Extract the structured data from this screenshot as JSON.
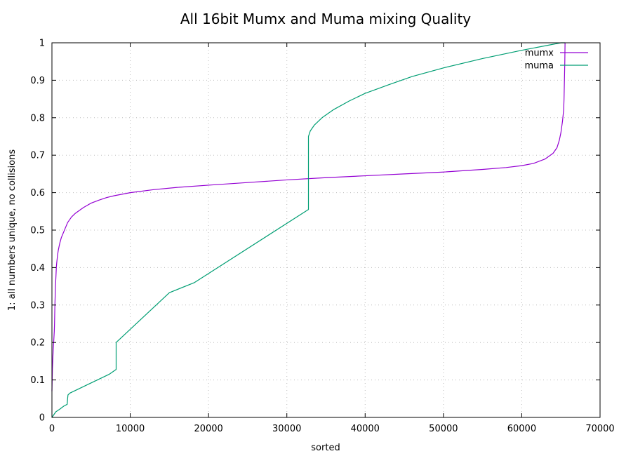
{
  "chart_data": {
    "type": "line",
    "title": "All 16bit Mumx and Muma mixing Quality",
    "xlabel": "sorted",
    "ylabel": "1: all numbers unique, no collisions",
    "xlim": [
      0,
      70000
    ],
    "ylim": [
      0,
      1
    ],
    "x_ticks": [
      0,
      10000,
      20000,
      30000,
      40000,
      50000,
      60000,
      70000
    ],
    "y_ticks": [
      0,
      0.1,
      0.2,
      0.3,
      0.4,
      0.5,
      0.6,
      0.7,
      0.8,
      0.9,
      1
    ],
    "grid": true,
    "legend_position": "top-right",
    "series": [
      {
        "name": "mumx",
        "color": "#9400d3",
        "x": [
          0,
          30,
          60,
          100,
          160,
          220,
          300,
          330,
          380,
          450,
          520,
          560,
          600,
          700,
          800,
          900,
          1000,
          1200,
          1400,
          1700,
          2000,
          2500,
          3000,
          4000,
          5000,
          6000,
          7000,
          8000,
          10000,
          13000,
          16000,
          20000,
          25000,
          30000,
          35000,
          40000,
          45000,
          50000,
          55000,
          58000,
          60000,
          61500,
          63000,
          64000,
          64500,
          64800,
          65000,
          65200,
          65350,
          65400,
          65450,
          65500,
          65530
        ],
        "y": [
          0.07,
          0.1,
          0.13,
          0.15,
          0.18,
          0.2,
          0.23,
          0.25,
          0.3,
          0.35,
          0.38,
          0.4,
          0.41,
          0.43,
          0.445,
          0.455,
          0.465,
          0.48,
          0.49,
          0.505,
          0.52,
          0.535,
          0.545,
          0.56,
          0.572,
          0.58,
          0.587,
          0.592,
          0.6,
          0.608,
          0.614,
          0.62,
          0.627,
          0.634,
          0.64,
          0.645,
          0.65,
          0.655,
          0.662,
          0.667,
          0.672,
          0.678,
          0.69,
          0.705,
          0.72,
          0.74,
          0.76,
          0.79,
          0.82,
          0.85,
          0.9,
          0.95,
          1.0
        ]
      },
      {
        "name": "muma",
        "color": "#009e73",
        "x": [
          0,
          500,
          1000,
          1500,
          1950,
          2000,
          2050,
          2300,
          7300,
          8200,
          8200,
          15000,
          18200,
          32760,
          32760,
          33000,
          33500,
          34500,
          36000,
          38000,
          40000,
          43000,
          46000,
          50000,
          55000,
          60000,
          65000,
          65535
        ],
        "y": [
          0.0,
          0.015,
          0.022,
          0.03,
          0.035,
          0.05,
          0.06,
          0.065,
          0.115,
          0.128,
          0.2,
          0.333,
          0.36,
          0.555,
          0.75,
          0.765,
          0.78,
          0.8,
          0.822,
          0.845,
          0.865,
          0.888,
          0.91,
          0.933,
          0.958,
          0.98,
          1.0,
          1.0
        ]
      }
    ]
  }
}
